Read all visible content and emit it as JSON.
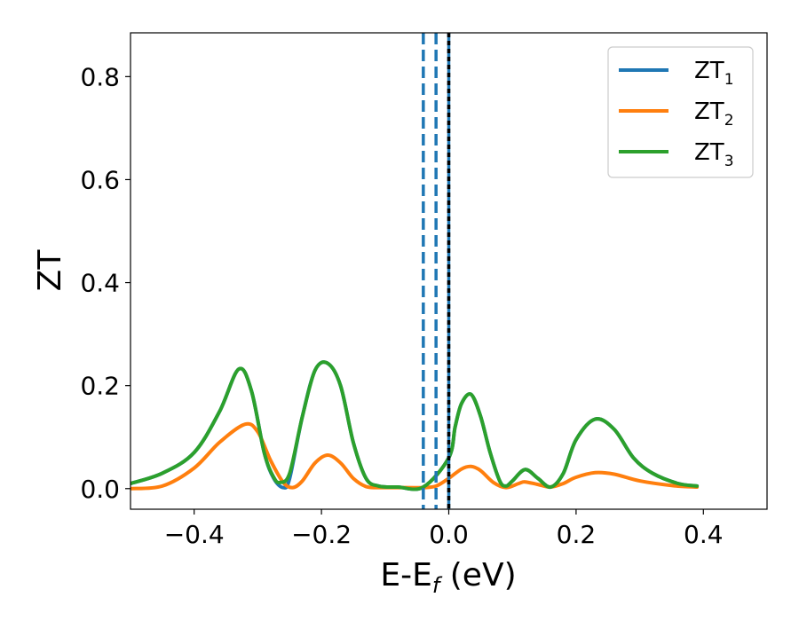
{
  "chart_data": {
    "type": "line",
    "xlabel": {
      "main": "E-E",
      "sub": "f",
      "unit": " (eV)"
    },
    "ylabel": "ZT",
    "xlim": [
      -0.5,
      0.5
    ],
    "ylim": [
      -0.04,
      0.885
    ],
    "xticks": [
      -0.4,
      -0.2,
      0.0,
      0.2,
      0.4
    ],
    "xtick_labels": [
      "−0.4",
      "−0.2",
      "0.0",
      "0.2",
      "0.4"
    ],
    "yticks": [
      0.0,
      0.2,
      0.4,
      0.6,
      0.8
    ],
    "ytick_labels": [
      "0.0",
      "0.2",
      "0.4",
      "0.6",
      "0.8"
    ],
    "grid": false,
    "legend_position": "top-right",
    "colors": {
      "zt1": "#1f77b4",
      "zt2": "#ff7f0e",
      "zt3": "#2ca02c",
      "fermi": "#000000"
    },
    "series": [
      {
        "name": "ZT",
        "sub": "1",
        "color": "#1f77b4",
        "x": [
          -0.5,
          -0.45,
          -0.4,
          -0.36,
          -0.33,
          -0.31,
          -0.29,
          -0.275,
          -0.26,
          -0.25,
          -0.23,
          -0.21,
          -0.19,
          -0.17,
          -0.15,
          -0.13,
          -0.11,
          -0.08,
          -0.04,
          0.0,
          0.01,
          0.02,
          0.035,
          0.05,
          0.065,
          0.08,
          0.09,
          0.1,
          0.12,
          0.14,
          0.16,
          0.18,
          0.2,
          0.23,
          0.26,
          0.29,
          0.32,
          0.36,
          0.39
        ],
        "y": [
          0.01,
          0.03,
          0.07,
          0.15,
          0.232,
          0.19,
          0.07,
          0.02,
          0.002,
          0.02,
          0.14,
          0.23,
          0.243,
          0.2,
          0.09,
          0.02,
          0.005,
          0.003,
          0.003,
          0.06,
          0.12,
          0.165,
          0.183,
          0.14,
          0.07,
          0.015,
          0.005,
          0.015,
          0.037,
          0.02,
          0.003,
          0.03,
          0.095,
          0.135,
          0.115,
          0.06,
          0.03,
          0.01,
          0.005
        ]
      },
      {
        "name": "ZT",
        "sub": "2",
        "color": "#ff7f0e",
        "x": [
          -0.5,
          -0.45,
          -0.4,
          -0.36,
          -0.32,
          -0.3,
          -0.28,
          -0.26,
          -0.245,
          -0.23,
          -0.21,
          -0.19,
          -0.17,
          -0.15,
          -0.13,
          -0.11,
          -0.08,
          -0.04,
          -0.02,
          0.0,
          0.02,
          0.035,
          0.05,
          0.07,
          0.09,
          0.11,
          0.12,
          0.14,
          0.16,
          0.18,
          0.2,
          0.23,
          0.26,
          0.3,
          0.35,
          0.39
        ],
        "y": [
          0.0,
          0.005,
          0.04,
          0.09,
          0.125,
          0.11,
          0.055,
          0.012,
          0.002,
          0.015,
          0.05,
          0.065,
          0.05,
          0.02,
          0.004,
          0.002,
          0.002,
          0.002,
          0.005,
          0.02,
          0.038,
          0.043,
          0.035,
          0.012,
          0.002,
          0.01,
          0.013,
          0.008,
          0.003,
          0.01,
          0.022,
          0.031,
          0.028,
          0.015,
          0.006,
          0.003
        ]
      },
      {
        "name": "ZT",
        "sub": "3",
        "color": "#2ca02c",
        "x": [
          -0.5,
          -0.45,
          -0.4,
          -0.36,
          -0.33,
          -0.31,
          -0.29,
          -0.275,
          -0.265,
          -0.25,
          -0.23,
          -0.21,
          -0.19,
          -0.17,
          -0.15,
          -0.13,
          -0.11,
          -0.08,
          -0.04,
          0.0,
          0.01,
          0.02,
          0.035,
          0.05,
          0.065,
          0.08,
          0.09,
          0.1,
          0.12,
          0.14,
          0.16,
          0.18,
          0.2,
          0.23,
          0.26,
          0.29,
          0.32,
          0.36,
          0.39
        ],
        "y": [
          0.01,
          0.03,
          0.07,
          0.15,
          0.232,
          0.19,
          0.07,
          0.022,
          0.012,
          0.03,
          0.14,
          0.23,
          0.243,
          0.2,
          0.09,
          0.02,
          0.005,
          0.003,
          0.003,
          0.06,
          0.12,
          0.165,
          0.183,
          0.14,
          0.07,
          0.015,
          0.005,
          0.015,
          0.037,
          0.02,
          0.003,
          0.03,
          0.095,
          0.135,
          0.115,
          0.06,
          0.03,
          0.01,
          0.005
        ]
      }
    ],
    "vlines": [
      {
        "x": -0.04,
        "style": "dashed",
        "color": "#1f77b4"
      },
      {
        "x": -0.02,
        "style": "dashed",
        "color": "#1f77b4"
      },
      {
        "x": 0.0,
        "style": "solid",
        "color": "#1f77b4"
      },
      {
        "x": 0.0,
        "style": "dotted",
        "color": "#000000"
      }
    ]
  }
}
